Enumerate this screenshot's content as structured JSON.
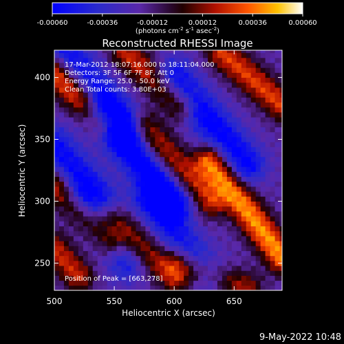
{
  "chart_data": {
    "type": "heatmap",
    "title": "Reconstructed RHESSI Image",
    "xlabel": "Heliocentric X (arcsec)",
    "ylabel": "Heliocentric Y (arcsec)",
    "xlim": [
      500,
      690
    ],
    "ylim": [
      228,
      422
    ],
    "x_ticks": [
      500,
      550,
      600,
      650
    ],
    "y_ticks": [
      250,
      300,
      350,
      400
    ],
    "x_tick_labels": [
      "500",
      "550",
      "600",
      "650"
    ],
    "y_tick_labels": [
      "250",
      "300",
      "350",
      "400"
    ],
    "colorbar": {
      "range": [
        -0.0006,
        0.0006
      ],
      "ticks": [
        -0.0006,
        -0.00036,
        -0.00012,
        0.00012,
        0.00036,
        0.0006
      ],
      "tick_labels": [
        "-0.00060",
        "-0.00036",
        "-0.00012",
        "0.00012",
        "0.00036",
        "0.00060"
      ],
      "unit_label": "(photons cm",
      "unit_exp1": "-2",
      "unit_mid": " s",
      "unit_exp2": "-1",
      "unit_mid2": " asec",
      "unit_exp3": "-2",
      "unit_end": ")"
    },
    "annotations": [
      "17-Mar-2012 18:07:16.000 to 18:11:04.000",
      "Detectors: 3F 5F 6F 7F 8F, Att 0",
      "Energy Range: 25.0 - 50.0 keV",
      "Clean     Total counts: 3.80E+03"
    ],
    "peak_label": "Position of Peak = [663,278]",
    "peak": [
      663,
      278
    ],
    "ridges": [
      {
        "x1": 500,
        "y1": 405,
        "x2": 540,
        "y2": 365,
        "amp": 0.00055
      },
      {
        "x1": 560,
        "y1": 420,
        "x2": 605,
        "y2": 378,
        "amp": 0.0004
      },
      {
        "x1": 640,
        "y1": 420,
        "x2": 690,
        "y2": 378,
        "amp": 0.00045
      },
      {
        "x1": 500,
        "y1": 312,
        "x2": 545,
        "y2": 268,
        "amp": 0.00045
      },
      {
        "x1": 575,
        "y1": 360,
        "x2": 630,
        "y2": 300,
        "amp": 0.0004
      },
      {
        "x1": 630,
        "y1": 332,
        "x2": 690,
        "y2": 255,
        "amp": 0.0006
      },
      {
        "x1": 545,
        "y1": 290,
        "x2": 600,
        "y2": 238,
        "amp": 0.00035
      },
      {
        "x1": 605,
        "y1": 250,
        "x2": 660,
        "y2": 230,
        "amp": 0.00035
      },
      {
        "x1": 500,
        "y1": 262,
        "x2": 520,
        "y2": 240,
        "amp": 0.0004
      }
    ],
    "troughs": [
      {
        "x1": 510,
        "y1": 420,
        "x2": 560,
        "y2": 360,
        "amp": -0.0004
      },
      {
        "x1": 540,
        "y1": 370,
        "x2": 600,
        "y2": 300,
        "amp": -0.0005
      },
      {
        "x1": 600,
        "y1": 400,
        "x2": 660,
        "y2": 330,
        "amp": -0.00045
      },
      {
        "x1": 500,
        "y1": 345,
        "x2": 540,
        "y2": 300,
        "amp": -0.0004
      },
      {
        "x1": 520,
        "y1": 300,
        "x2": 560,
        "y2": 250,
        "amp": -0.0003
      },
      {
        "x1": 580,
        "y1": 300,
        "x2": 630,
        "y2": 240,
        "amp": -0.00035
      }
    ]
  },
  "footer": {
    "date": "9-May-2022 10:48"
  }
}
